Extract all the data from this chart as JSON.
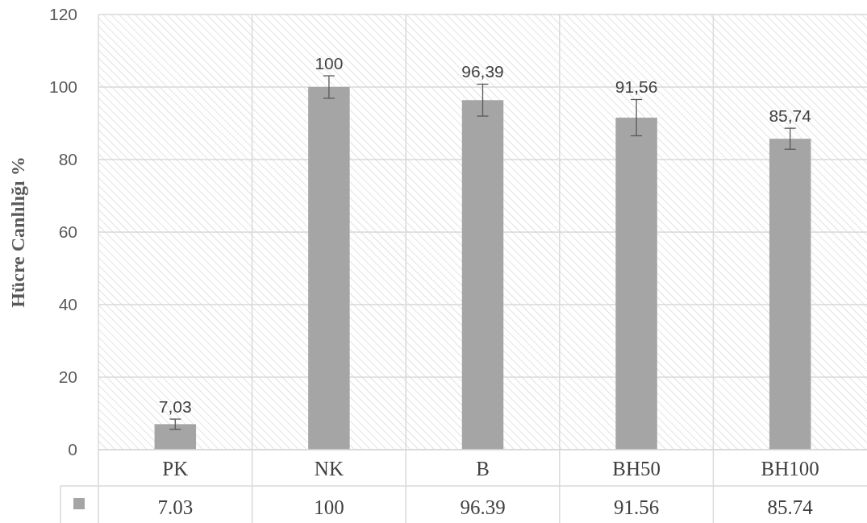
{
  "chart_data": {
    "type": "bar",
    "ylabel": "Hücre Canlılığı %",
    "categories": [
      "PK",
      "NK",
      "B",
      "BH50",
      "BH100"
    ],
    "series": [
      {
        "color": "#a5a5a5",
        "values": [
          7.03,
          100,
          96.39,
          91.56,
          85.74
        ],
        "errors": [
          1.4,
          3.1,
          4.4,
          5,
          2.9
        ],
        "value_labels": [
          "7,03",
          "100",
          "96,39",
          "91,56",
          "85,74"
        ]
      }
    ],
    "ylim": [
      0,
      120
    ],
    "yticks": [
      0,
      20,
      40,
      60,
      80,
      100,
      120
    ],
    "grid": true,
    "annotations": [
      "7.03",
      "100",
      "96.39",
      "91.56",
      "85.74"
    ]
  }
}
